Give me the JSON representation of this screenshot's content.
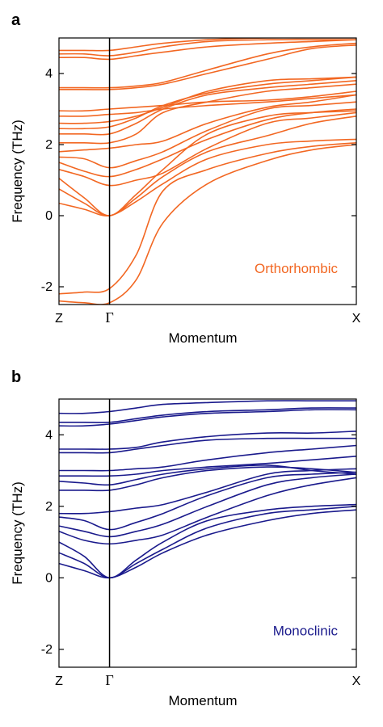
{
  "chart_data": [
    {
      "panel_letter": "a",
      "type": "line",
      "xlabel": "Momentum",
      "ylabel": "Frequency (THz)",
      "x_ticks": [
        "Z",
        "Γ",
        "X"
      ],
      "x_range": [
        0,
        1
      ],
      "gamma_position": 0.17,
      "yticks": [
        -2,
        0,
        2,
        4
      ],
      "ylim": [
        -2.5,
        5.0
      ],
      "annotation": "Orthorhombic",
      "color": "#f26722",
      "x": [
        0,
        0.085,
        0.17,
        0.26,
        0.35,
        0.5,
        0.7,
        0.85,
        1.0
      ],
      "bands": [
        [
          -2.4,
          -2.45,
          -2.45,
          -1.8,
          -0.2,
          0.9,
          1.55,
          1.85,
          2.0
        ],
        [
          -2.2,
          -2.15,
          -2.05,
          -1.1,
          0.7,
          1.3,
          1.75,
          1.95,
          2.05
        ],
        [
          0.35,
          0.18,
          0.0,
          0.4,
          0.9,
          1.6,
          2.0,
          2.1,
          2.15
        ],
        [
          0.75,
          0.35,
          0.0,
          0.5,
          1.1,
          1.8,
          2.25,
          2.6,
          2.8
        ],
        [
          1.05,
          0.5,
          0.0,
          0.6,
          1.3,
          2.3,
          2.8,
          2.9,
          2.95
        ],
        [
          1.3,
          1.1,
          0.85,
          1.0,
          1.2,
          1.9,
          2.6,
          2.75,
          2.9
        ],
        [
          1.5,
          1.25,
          1.1,
          1.3,
          1.6,
          2.15,
          2.7,
          2.9,
          3.0
        ],
        [
          1.65,
          1.6,
          1.35,
          1.55,
          1.8,
          2.4,
          3.0,
          3.1,
          3.2
        ],
        [
          1.8,
          1.85,
          1.9,
          2.0,
          2.1,
          2.6,
          3.05,
          3.2,
          3.4
        ],
        [
          2.05,
          2.05,
          2.05,
          2.3,
          2.9,
          3.2,
          3.5,
          3.6,
          3.7
        ],
        [
          2.3,
          2.3,
          2.3,
          2.6,
          3.0,
          3.4,
          3.6,
          3.7,
          3.8
        ],
        [
          2.45,
          2.45,
          2.5,
          2.75,
          3.1,
          3.45,
          3.7,
          3.8,
          3.9
        ],
        [
          2.6,
          2.6,
          2.65,
          2.8,
          3.05,
          3.5,
          3.8,
          3.85,
          3.9
        ],
        [
          2.8,
          2.8,
          2.85,
          2.9,
          3.0,
          3.1,
          3.2,
          3.3,
          3.4
        ],
        [
          2.95,
          2.95,
          3.0,
          3.05,
          3.1,
          3.2,
          3.25,
          3.35,
          3.5
        ],
        [
          3.55,
          3.55,
          3.55,
          3.6,
          3.7,
          4.0,
          4.4,
          4.7,
          4.8
        ],
        [
          3.6,
          3.6,
          3.6,
          3.65,
          3.75,
          4.1,
          4.55,
          4.75,
          4.85
        ],
        [
          4.45,
          4.45,
          4.4,
          4.5,
          4.6,
          4.75,
          4.85,
          4.9,
          4.95
        ],
        [
          4.55,
          4.55,
          4.5,
          4.6,
          4.75,
          4.9,
          4.95,
          4.95,
          4.95
        ],
        [
          4.65,
          4.65,
          4.65,
          4.75,
          4.85,
          4.95,
          5.0,
          5.0,
          5.0
        ]
      ]
    },
    {
      "panel_letter": "b",
      "type": "line",
      "xlabel": "Momentum",
      "ylabel": "Frequency (THz)",
      "x_ticks": [
        "Z",
        "Γ",
        "X"
      ],
      "x_range": [
        0,
        1
      ],
      "gamma_position": 0.17,
      "yticks": [
        -2,
        0,
        2,
        4
      ],
      "ylim": [
        -2.5,
        5.0
      ],
      "annotation": "Monoclinic",
      "color": "#1a1a8c",
      "x": [
        0,
        0.085,
        0.17,
        0.26,
        0.35,
        0.5,
        0.7,
        0.85,
        1.0
      ],
      "bands": [
        [
          0.4,
          0.2,
          0.0,
          0.3,
          0.7,
          1.2,
          1.6,
          1.8,
          1.9
        ],
        [
          0.7,
          0.4,
          0.0,
          0.4,
          0.8,
          1.4,
          1.8,
          1.9,
          2.0
        ],
        [
          1.0,
          0.6,
          0.0,
          0.5,
          1.0,
          1.6,
          1.9,
          2.0,
          2.05
        ],
        [
          1.3,
          1.05,
          0.95,
          1.05,
          1.2,
          1.7,
          2.3,
          2.6,
          2.8
        ],
        [
          1.45,
          1.3,
          1.15,
          1.3,
          1.5,
          2.0,
          2.6,
          2.8,
          2.9
        ],
        [
          1.7,
          1.6,
          1.35,
          1.55,
          1.8,
          2.3,
          2.8,
          2.9,
          2.95
        ],
        [
          1.8,
          1.8,
          1.85,
          1.95,
          2.05,
          2.4,
          2.9,
          3.0,
          3.05
        ],
        [
          2.45,
          2.45,
          2.45,
          2.6,
          2.8,
          3.0,
          3.1,
          3.05,
          2.95
        ],
        [
          2.7,
          2.65,
          2.6,
          2.75,
          2.9,
          3.05,
          3.15,
          3.0,
          2.9
        ],
        [
          2.85,
          2.85,
          2.85,
          2.9,
          3.0,
          3.1,
          3.2,
          3.3,
          3.4
        ],
        [
          3.0,
          3.0,
          3.0,
          3.05,
          3.1,
          3.3,
          3.5,
          3.6,
          3.7
        ],
        [
          3.5,
          3.5,
          3.5,
          3.6,
          3.7,
          3.85,
          3.9,
          3.9,
          3.9
        ],
        [
          3.6,
          3.6,
          3.6,
          3.65,
          3.8,
          3.95,
          4.05,
          4.05,
          4.1
        ],
        [
          4.25,
          4.25,
          4.3,
          4.4,
          4.5,
          4.6,
          4.65,
          4.7,
          4.7
        ],
        [
          4.35,
          4.35,
          4.35,
          4.45,
          4.55,
          4.65,
          4.7,
          4.75,
          4.75
        ],
        [
          4.6,
          4.6,
          4.65,
          4.75,
          4.85,
          4.9,
          4.95,
          4.95,
          4.95
        ]
      ]
    }
  ]
}
